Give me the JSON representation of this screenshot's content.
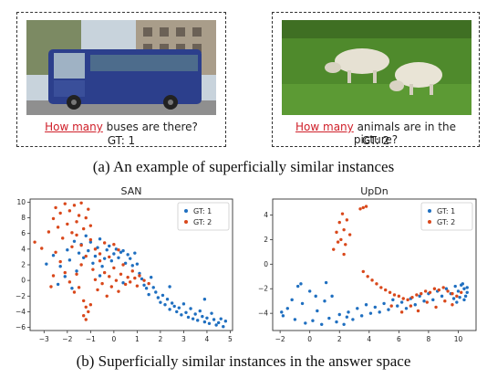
{
  "panel_a": {
    "left": {
      "question_highlight": "How many",
      "question_rest": " buses are there?",
      "gt": "GT: 1"
    },
    "right": {
      "question_highlight": "How many",
      "question_rest": " animals are in the picture?",
      "gt": "GT: 2"
    },
    "caption": "(a) An example of superficially similar instances"
  },
  "caption_b": "(b) Superficially similar instances in the answer space",
  "colors": {
    "gt1": "#1f6fc0",
    "gt2": "#d9481b",
    "highlight": "#d0202a"
  },
  "chart_data": [
    {
      "type": "scatter",
      "title": "SAN",
      "xlabel": "",
      "ylabel": "",
      "xlim": [
        -3.6,
        5.1
      ],
      "ylim": [
        -6.4,
        10.4
      ],
      "xticks": [
        -3,
        -2,
        -1,
        0,
        1,
        2,
        3,
        4,
        5
      ],
      "yticks": [
        -6,
        -4,
        -2,
        0,
        2,
        4,
        6,
        8,
        10
      ],
      "legend_position": "top-right",
      "grid": false,
      "series": [
        {
          "name": "GT: 1",
          "color": "#1f6fc0",
          "points": [
            [
              -2.9,
              2.1
            ],
            [
              -2.6,
              3.2
            ],
            [
              -2.3,
              1.8
            ],
            [
              -2.1,
              0.5
            ],
            [
              -2.0,
              3.9
            ],
            [
              -1.9,
              2.6
            ],
            [
              -1.7,
              5.0
            ],
            [
              -1.6,
              1.2
            ],
            [
              -1.5,
              3.5
            ],
            [
              -1.4,
              4.6
            ],
            [
              -1.3,
              2.9
            ],
            [
              -1.2,
              5.7
            ],
            [
              -1.1,
              3.8
            ],
            [
              -1.0,
              4.9
            ],
            [
              -0.9,
              2.2
            ],
            [
              -0.8,
              3.1
            ],
            [
              -0.7,
              4.2
            ],
            [
              -0.6,
              5.3
            ],
            [
              -0.5,
              1.8
            ],
            [
              -0.4,
              2.8
            ],
            [
              -0.3,
              3.9
            ],
            [
              -0.2,
              4.4
            ],
            [
              -0.1,
              2.5
            ],
            [
              0.0,
              3.4
            ],
            [
              0.1,
              4.0
            ],
            [
              0.2,
              2.9
            ],
            [
              0.3,
              3.6
            ],
            [
              0.4,
              3.8
            ],
            [
              0.5,
              2.2
            ],
            [
              0.6,
              3.3
            ],
            [
              0.7,
              2.8
            ],
            [
              0.8,
              1.9
            ],
            [
              0.9,
              3.5
            ],
            [
              1.0,
              2.1
            ],
            [
              1.1,
              0.9
            ],
            [
              1.2,
              0.2
            ],
            [
              1.3,
              -0.6
            ],
            [
              1.4,
              -1.0
            ],
            [
              1.5,
              -1.8
            ],
            [
              1.6,
              0.4
            ],
            [
              1.7,
              -0.9
            ],
            [
              1.8,
              -1.5
            ],
            [
              1.9,
              -2.2
            ],
            [
              2.0,
              -2.8
            ],
            [
              2.1,
              -1.9
            ],
            [
              2.2,
              -3.1
            ],
            [
              2.3,
              -2.4
            ],
            [
              2.4,
              -3.7
            ],
            [
              2.5,
              -2.9
            ],
            [
              2.6,
              -3.3
            ],
            [
              2.7,
              -4.0
            ],
            [
              2.8,
              -3.5
            ],
            [
              2.9,
              -4.4
            ],
            [
              3.0,
              -3.0
            ],
            [
              3.1,
              -4.1
            ],
            [
              3.2,
              -4.7
            ],
            [
              3.3,
              -3.6
            ],
            [
              3.4,
              -4.9
            ],
            [
              3.5,
              -4.3
            ],
            [
              3.6,
              -5.1
            ],
            [
              3.7,
              -3.9
            ],
            [
              3.8,
              -4.6
            ],
            [
              3.9,
              -5.3
            ],
            [
              4.0,
              -4.8
            ],
            [
              4.1,
              -5.5
            ],
            [
              4.2,
              -4.2
            ],
            [
              4.3,
              -5.0
            ],
            [
              4.4,
              -5.7
            ],
            [
              4.5,
              -5.4
            ],
            [
              4.6,
              -4.9
            ],
            [
              4.7,
              -5.9
            ],
            [
              4.8,
              -5.2
            ],
            [
              -2.4,
              -0.5
            ],
            [
              -1.8,
              -1.0
            ],
            [
              -0.6,
              0.6
            ],
            [
              0.4,
              -0.3
            ],
            [
              2.4,
              -0.8
            ],
            [
              3.9,
              -2.4
            ]
          ]
        },
        {
          "name": "GT: 2",
          "color": "#d9481b",
          "points": [
            [
              -3.4,
              4.9
            ],
            [
              -3.1,
              4.1
            ],
            [
              -2.8,
              6.2
            ],
            [
              -2.6,
              7.9
            ],
            [
              -2.5,
              9.3
            ],
            [
              -2.4,
              6.8
            ],
            [
              -2.3,
              8.6
            ],
            [
              -2.2,
              5.4
            ],
            [
              -2.1,
              9.8
            ],
            [
              -2.0,
              7.2
            ],
            [
              -1.9,
              8.9
            ],
            [
              -1.8,
              6.1
            ],
            [
              -1.7,
              9.6
            ],
            [
              -1.6,
              7.5
            ],
            [
              -1.5,
              8.3
            ],
            [
              -1.4,
              9.9
            ],
            [
              -1.3,
              6.6
            ],
            [
              -1.2,
              8.0
            ],
            [
              -1.1,
              9.1
            ],
            [
              -1.0,
              7.0
            ],
            [
              -2.5,
              3.6
            ],
            [
              -2.3,
              2.4
            ],
            [
              -2.1,
              1.0
            ],
            [
              -1.9,
              -0.2
            ],
            [
              -1.8,
              4.3
            ],
            [
              -1.7,
              -1.5
            ],
            [
              -1.6,
              0.8
            ],
            [
              -1.5,
              -0.9
            ],
            [
              -1.4,
              2.0
            ],
            [
              -1.3,
              -2.6
            ],
            [
              -1.2,
              -3.4
            ],
            [
              -1.1,
              -4.0
            ],
            [
              -1.0,
              -3.1
            ],
            [
              -0.9,
              1.4
            ],
            [
              -0.8,
              0.1
            ],
            [
              -0.7,
              -1.2
            ],
            [
              -0.6,
              2.5
            ],
            [
              -0.5,
              -0.4
            ],
            [
              -0.4,
              1.0
            ],
            [
              -0.3,
              -2.0
            ],
            [
              -0.2,
              0.5
            ],
            [
              -0.1,
              -0.8
            ],
            [
              0.0,
              1.6
            ],
            [
              0.1,
              0.0
            ],
            [
              0.2,
              -1.4
            ],
            [
              0.3,
              0.8
            ],
            [
              0.4,
              2.0
            ],
            [
              0.5,
              -0.5
            ],
            [
              0.6,
              0.4
            ],
            [
              0.7,
              -0.2
            ],
            [
              0.8,
              1.2
            ],
            [
              0.9,
              0.3
            ],
            [
              1.0,
              -0.7
            ],
            [
              1.1,
              0.6
            ],
            [
              1.3,
              0.0
            ],
            [
              1.5,
              -0.4
            ],
            [
              -1.6,
              5.8
            ],
            [
              -1.4,
              4.5
            ],
            [
              -1.2,
              3.1
            ],
            [
              -1.0,
              5.2
            ],
            [
              -0.8,
              4.0
            ],
            [
              -0.6,
              3.4
            ],
            [
              -0.4,
              4.8
            ],
            [
              -0.2,
              3.0
            ],
            [
              0.0,
              4.6
            ],
            [
              0.2,
              3.9
            ],
            [
              -2.7,
              -0.8
            ],
            [
              -2.6,
              0.6
            ],
            [
              -1.2,
              -5.0
            ],
            [
              -1.3,
              -4.5
            ]
          ]
        }
      ]
    },
    {
      "type": "scatter",
      "title": "UpDn",
      "xlabel": "",
      "ylabel": "",
      "xlim": [
        -2.5,
        11.2
      ],
      "ylim": [
        -5.4,
        5.3
      ],
      "xticks": [
        -2,
        0,
        2,
        4,
        6,
        8,
        10
      ],
      "yticks": [
        -4,
        -2,
        0,
        2,
        4
      ],
      "legend_position": "top-right",
      "grid": false,
      "series": [
        {
          "name": "GT: 1",
          "color": "#1f6fc0",
          "points": [
            [
              -1.8,
              -4.2
            ],
            [
              -1.5,
              -3.6
            ],
            [
              -1.2,
              -2.9
            ],
            [
              -1.0,
              -4.5
            ],
            [
              -0.8,
              -1.8
            ],
            [
              -0.5,
              -3.2
            ],
            [
              -0.3,
              -4.8
            ],
            [
              0.0,
              -2.2
            ],
            [
              0.2,
              -4.6
            ],
            [
              0.5,
              -3.8
            ],
            [
              0.8,
              -4.9
            ],
            [
              1.0,
              -3.0
            ],
            [
              1.3,
              -4.4
            ],
            [
              1.5,
              -2.6
            ],
            [
              1.8,
              -4.7
            ],
            [
              2.0,
              -4.1
            ],
            [
              2.3,
              -4.9
            ],
            [
              2.6,
              -3.9
            ],
            [
              2.9,
              -4.5
            ],
            [
              3.2,
              -3.6
            ],
            [
              3.5,
              -4.2
            ],
            [
              3.8,
              -3.3
            ],
            [
              4.1,
              -4.0
            ],
            [
              4.4,
              -3.5
            ],
            [
              4.7,
              -3.9
            ],
            [
              5.0,
              -3.2
            ],
            [
              5.3,
              -3.7
            ],
            [
              5.6,
              -2.9
            ],
            [
              5.9,
              -3.4
            ],
            [
              6.2,
              -3.1
            ],
            [
              6.5,
              -3.6
            ],
            [
              6.8,
              -2.8
            ],
            [
              7.1,
              -3.3
            ],
            [
              7.4,
              -2.6
            ],
            [
              7.7,
              -3.0
            ],
            [
              8.0,
              -2.4
            ],
            [
              8.3,
              -2.9
            ],
            [
              8.6,
              -2.2
            ],
            [
              8.9,
              -2.6
            ],
            [
              9.2,
              -2.0
            ],
            [
              9.5,
              -2.4
            ],
            [
              9.8,
              -1.8
            ],
            [
              10.0,
              -2.2
            ],
            [
              10.2,
              -1.7
            ],
            [
              10.4,
              -2.0
            ],
            [
              10.5,
              -2.6
            ],
            [
              10.6,
              -1.9
            ],
            [
              10.4,
              -2.9
            ],
            [
              10.1,
              -2.7
            ],
            [
              9.9,
              -3.1
            ],
            [
              9.7,
              -2.8
            ],
            [
              10.6,
              -2.3
            ],
            [
              10.3,
              -1.6
            ],
            [
              -0.6,
              -1.6
            ],
            [
              0.4,
              -2.6
            ],
            [
              1.1,
              -1.5
            ],
            [
              2.5,
              -4.3
            ],
            [
              -1.9,
              -3.9
            ]
          ]
        },
        {
          "name": "GT: 2",
          "color": "#d9481b",
          "points": [
            [
              1.6,
              1.2
            ],
            [
              1.8,
              2.6
            ],
            [
              2.0,
              3.4
            ],
            [
              2.1,
              2.0
            ],
            [
              2.2,
              4.1
            ],
            [
              2.3,
              2.8
            ],
            [
              2.4,
              1.6
            ],
            [
              2.5,
              3.6
            ],
            [
              1.9,
              1.8
            ],
            [
              2.7,
              2.4
            ],
            [
              3.4,
              4.5
            ],
            [
              3.6,
              4.6
            ],
            [
              3.8,
              4.7
            ],
            [
              3.6,
              -0.6
            ],
            [
              3.9,
              -1.0
            ],
            [
              4.2,
              -1.3
            ],
            [
              4.5,
              -1.6
            ],
            [
              4.8,
              -1.9
            ],
            [
              5.1,
              -2.1
            ],
            [
              5.4,
              -2.3
            ],
            [
              5.7,
              -2.5
            ],
            [
              6.0,
              -2.6
            ],
            [
              6.3,
              -2.8
            ],
            [
              6.6,
              -2.9
            ],
            [
              6.9,
              -2.7
            ],
            [
              7.2,
              -2.5
            ],
            [
              7.5,
              -2.4
            ],
            [
              7.8,
              -2.2
            ],
            [
              8.1,
              -2.3
            ],
            [
              8.4,
              -2.0
            ],
            [
              8.7,
              -2.1
            ],
            [
              9.0,
              -1.9
            ],
            [
              9.3,
              -2.2
            ],
            [
              9.6,
              -2.4
            ],
            [
              9.9,
              -2.6
            ],
            [
              10.2,
              -2.3
            ],
            [
              5.5,
              -3.4
            ],
            [
              6.2,
              -3.9
            ],
            [
              6.8,
              -3.4
            ],
            [
              7.3,
              -3.8
            ],
            [
              7.9,
              -3.1
            ],
            [
              8.5,
              -3.5
            ],
            [
              9.1,
              -3.0
            ],
            [
              9.6,
              -3.3
            ],
            [
              2.3,
              0.8
            ]
          ]
        }
      ]
    }
  ]
}
